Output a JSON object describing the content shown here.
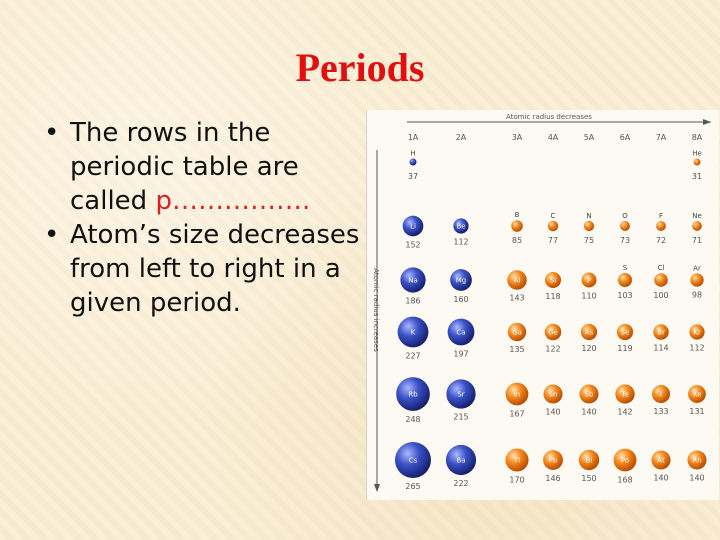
{
  "slide": {
    "title": "Periods",
    "bullets": [
      {
        "text": "The rows in the periodic table are called ",
        "blank": "p……………."
      },
      {
        "text": "Atom’s size decreases from left to right in a given period."
      }
    ]
  },
  "figure": {
    "horizontal_label": "Atomic radius decreases",
    "vertical_label": "Atomic radius increases",
    "group_labels": [
      "1A",
      "2A",
      "3A",
      "4A",
      "5A",
      "6A",
      "7A",
      "8A"
    ],
    "colors": {
      "group_ab": "#2b3fb3",
      "group_p": "#f07818",
      "axis": "#555555"
    },
    "rows": [
      [
        {
          "symbol": "H",
          "radius_pm": 37,
          "col": 0
        },
        {
          "symbol": "He",
          "radius_pm": 31,
          "col": 7
        }
      ],
      [
        {
          "symbol": "Li",
          "radius_pm": 152,
          "col": 0
        },
        {
          "symbol": "Be",
          "radius_pm": 112,
          "col": 1
        },
        {
          "symbol": "B",
          "radius_pm": 85,
          "col": 2
        },
        {
          "symbol": "C",
          "radius_pm": 77,
          "col": 3
        },
        {
          "symbol": "N",
          "radius_pm": 75,
          "col": 4
        },
        {
          "symbol": "O",
          "radius_pm": 73,
          "col": 5
        },
        {
          "symbol": "F",
          "radius_pm": 72,
          "col": 6
        },
        {
          "symbol": "Ne",
          "radius_pm": 71,
          "col": 7
        }
      ],
      [
        {
          "symbol": "Na",
          "radius_pm": 186,
          "col": 0
        },
        {
          "symbol": "Mg",
          "radius_pm": 160,
          "col": 1
        },
        {
          "symbol": "Al",
          "radius_pm": 143,
          "col": 2
        },
        {
          "symbol": "Si",
          "radius_pm": 118,
          "col": 3
        },
        {
          "symbol": "P",
          "radius_pm": 110,
          "col": 4
        },
        {
          "symbol": "S",
          "radius_pm": 103,
          "col": 5
        },
        {
          "symbol": "Cl",
          "radius_pm": 100,
          "col": 6
        },
        {
          "symbol": "Ar",
          "radius_pm": 98,
          "col": 7
        }
      ],
      [
        {
          "symbol": "K",
          "radius_pm": 227,
          "col": 0
        },
        {
          "symbol": "Ca",
          "radius_pm": 197,
          "col": 1
        },
        {
          "symbol": "Ga",
          "radius_pm": 135,
          "col": 2
        },
        {
          "symbol": "Ge",
          "radius_pm": 122,
          "col": 3
        },
        {
          "symbol": "As",
          "radius_pm": 120,
          "col": 4
        },
        {
          "symbol": "Se",
          "radius_pm": 119,
          "col": 5
        },
        {
          "symbol": "Br",
          "radius_pm": 114,
          "col": 6
        },
        {
          "symbol": "Kr",
          "radius_pm": 112,
          "col": 7
        }
      ],
      [
        {
          "symbol": "Rb",
          "radius_pm": 248,
          "col": 0
        },
        {
          "symbol": "Sr",
          "radius_pm": 215,
          "col": 1
        },
        {
          "symbol": "In",
          "radius_pm": 167,
          "col": 2
        },
        {
          "symbol": "Sn",
          "radius_pm": 140,
          "col": 3
        },
        {
          "symbol": "Sb",
          "radius_pm": 140,
          "col": 4
        },
        {
          "symbol": "Te",
          "radius_pm": 142,
          "col": 5
        },
        {
          "symbol": "I",
          "radius_pm": 133,
          "col": 6
        },
        {
          "symbol": "Xe",
          "radius_pm": 131,
          "col": 7
        }
      ],
      [
        {
          "symbol": "Cs",
          "radius_pm": 265,
          "col": 0
        },
        {
          "symbol": "Ba",
          "radius_pm": 222,
          "col": 1
        },
        {
          "symbol": "Tl",
          "radius_pm": 170,
          "col": 2
        },
        {
          "symbol": "Pb",
          "radius_pm": 146,
          "col": 3
        },
        {
          "symbol": "Bi",
          "radius_pm": 150,
          "col": 4
        },
        {
          "symbol": "Po",
          "radius_pm": 168,
          "col": 5
        },
        {
          "symbol": "At",
          "radius_pm": 140,
          "col": 6
        },
        {
          "symbol": "Rn",
          "radius_pm": 140,
          "col": 7
        }
      ]
    ]
  }
}
